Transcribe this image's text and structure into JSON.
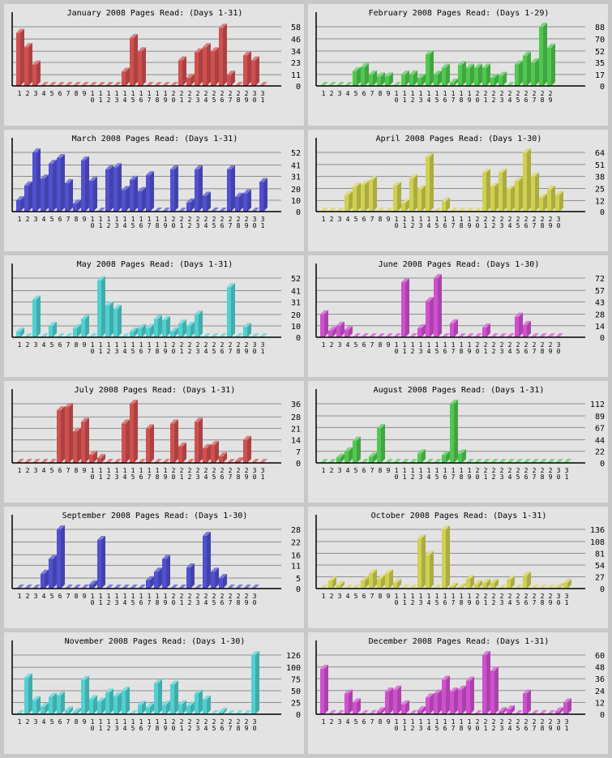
{
  "chart_data": [
    {
      "type": "bar",
      "title": "January 2008 Pages Read: (Days 1-31)",
      "color": "#d05050",
      "days": 31,
      "yticks": [
        0,
        11,
        23,
        34,
        46,
        58
      ],
      "ylim": [
        0,
        58
      ],
      "values": [
        52,
        38,
        21,
        0,
        0,
        0,
        0,
        0,
        0,
        0,
        0,
        0,
        0,
        14,
        47,
        34,
        0,
        0,
        0,
        0,
        25,
        8,
        33,
        38,
        34,
        57,
        11,
        0,
        30,
        25,
        0
      ]
    },
    {
      "type": "bar",
      "title": "February 2008 Pages Read: (Days 1-29)",
      "color": "#50c850",
      "days": 29,
      "yticks": [
        0,
        17,
        35,
        52,
        70,
        88
      ],
      "ylim": [
        0,
        88
      ],
      "values": [
        0,
        0,
        0,
        0,
        22,
        28,
        17,
        14,
        14,
        0,
        17,
        17,
        12,
        47,
        17,
        27,
        5,
        31,
        27,
        27,
        27,
        12,
        15,
        0,
        32,
        45,
        35,
        88,
        57
      ]
    },
    {
      "type": "bar",
      "title": "March 2008 Pages Read: (Days 1-31)",
      "color": "#5050d0",
      "days": 31,
      "yticks": [
        0,
        10,
        20,
        31,
        41,
        52
      ],
      "ylim": [
        0,
        52
      ],
      "values": [
        10,
        23,
        52,
        29,
        42,
        47,
        25,
        7,
        45,
        27,
        0,
        37,
        39,
        19,
        28,
        18,
        32,
        0,
        0,
        37,
        0,
        8,
        37,
        14,
        0,
        0,
        37,
        13,
        16,
        0,
        26
      ]
    },
    {
      "type": "bar",
      "title": "April 2008 Pages Read: (Days 1-30)",
      "color": "#d0d050",
      "days": 30,
      "yticks": [
        0,
        12,
        25,
        38,
        51,
        64
      ],
      "ylim": [
        0,
        64
      ],
      "values": [
        0,
        0,
        0,
        18,
        27,
        29,
        34,
        0,
        0,
        28,
        9,
        36,
        24,
        59,
        0,
        11,
        0,
        0,
        0,
        0,
        42,
        27,
        42,
        24,
        33,
        64,
        38,
        15,
        24,
        18
      ]
    },
    {
      "type": "bar",
      "title": "May 2008 Pages Read: (Days 1-31)",
      "color": "#50d0d0",
      "days": 31,
      "yticks": [
        0,
        10,
        20,
        31,
        41,
        52
      ],
      "ylim": [
        0,
        52
      ],
      "values": [
        5,
        0,
        33,
        0,
        10,
        0,
        0,
        8,
        16,
        0,
        50,
        28,
        25,
        0,
        5,
        8,
        8,
        16,
        15,
        5,
        12,
        10,
        20,
        0,
        0,
        0,
        44,
        0,
        9,
        0,
        0
      ]
    },
    {
      "type": "bar",
      "title": "June 2008 Pages Read: (Days 1-30)",
      "color": "#d050d0",
      "days": 30,
      "yticks": [
        0,
        14,
        28,
        43,
        57,
        72
      ],
      "ylim": [
        0,
        72
      ],
      "values": [
        28,
        8,
        14,
        9,
        0,
        0,
        0,
        0,
        0,
        0,
        67,
        0,
        11,
        44,
        72,
        0,
        17,
        0,
        0,
        0,
        12,
        0,
        0,
        0,
        25,
        15,
        0,
        0,
        0,
        0
      ]
    },
    {
      "type": "bar",
      "title": "July 2008 Pages Read: (Days 1-31)",
      "color": "#d05050",
      "days": 31,
      "yticks": [
        0,
        7,
        14,
        21,
        28,
        36
      ],
      "ylim": [
        0,
        36
      ],
      "values": [
        0,
        0,
        0,
        0,
        0,
        32,
        34,
        19,
        25,
        5,
        3,
        0,
        0,
        24,
        36,
        0,
        21,
        0,
        0,
        24,
        10,
        0,
        25,
        9,
        11,
        4,
        0,
        1,
        14,
        0,
        0
      ]
    },
    {
      "type": "bar",
      "title": "August 2008 Pages Read: (Days 1-31)",
      "color": "#50c850",
      "days": 31,
      "yticks": [
        0,
        22,
        44,
        67,
        89,
        112
      ],
      "ylim": [
        0,
        112
      ],
      "values": [
        0,
        0,
        10,
        22,
        42,
        0,
        12,
        66,
        0,
        0,
        0,
        0,
        18,
        0,
        0,
        15,
        112,
        18,
        0,
        0,
        0,
        0,
        0,
        0,
        0,
        0,
        0,
        0,
        0,
        0,
        0
      ]
    },
    {
      "type": "bar",
      "title": "September 2008 Pages Read: (Days 1-30)",
      "color": "#5050d0",
      "days": 30,
      "yticks": [
        0,
        5,
        11,
        16,
        22,
        28
      ],
      "ylim": [
        0,
        28
      ],
      "values": [
        0,
        0,
        0,
        7,
        14,
        28,
        0,
        0,
        0,
        2,
        23,
        0,
        0,
        0,
        0,
        0,
        4,
        8,
        14,
        0,
        0,
        10,
        0,
        25,
        8,
        5,
        0,
        0,
        0,
        0
      ]
    },
    {
      "type": "bar",
      "title": "October 2008 Pages Read: (Days 1-31)",
      "color": "#d0d050",
      "days": 31,
      "yticks": [
        0,
        27,
        54,
        81,
        108,
        136
      ],
      "ylim": [
        0,
        136
      ],
      "values": [
        0,
        18,
        8,
        0,
        0,
        18,
        35,
        22,
        35,
        13,
        0,
        0,
        115,
        77,
        0,
        136,
        5,
        3,
        22,
        10,
        13,
        13,
        0,
        20,
        0,
        30,
        0,
        0,
        0,
        3,
        13
      ]
    },
    {
      "type": "bar",
      "title": "November 2008 Pages Read: (Days 1-30)",
      "color": "#50d0d0",
      "days": 30,
      "yticks": [
        0,
        25,
        50,
        75,
        100,
        126
      ],
      "ylim": [
        0,
        126
      ],
      "values": [
        0,
        78,
        30,
        16,
        37,
        40,
        8,
        5,
        73,
        32,
        27,
        46,
        38,
        50,
        0,
        20,
        15,
        66,
        20,
        63,
        21,
        18,
        44,
        31,
        0,
        5,
        0,
        0,
        0,
        126
      ]
    },
    {
      "type": "bar",
      "title": "December 2008 Pages Read: (Days 1-31)",
      "color": "#d050d0",
      "days": 31,
      "yticks": [
        0,
        12,
        24,
        36,
        48,
        60
      ],
      "ylim": [
        0,
        60
      ],
      "values": [
        46,
        0,
        0,
        21,
        12,
        0,
        0,
        3,
        23,
        25,
        10,
        0,
        4,
        17,
        21,
        35,
        23,
        25,
        34,
        0,
        60,
        44,
        3,
        5,
        0,
        21,
        0,
        0,
        0,
        3,
        12
      ]
    }
  ]
}
